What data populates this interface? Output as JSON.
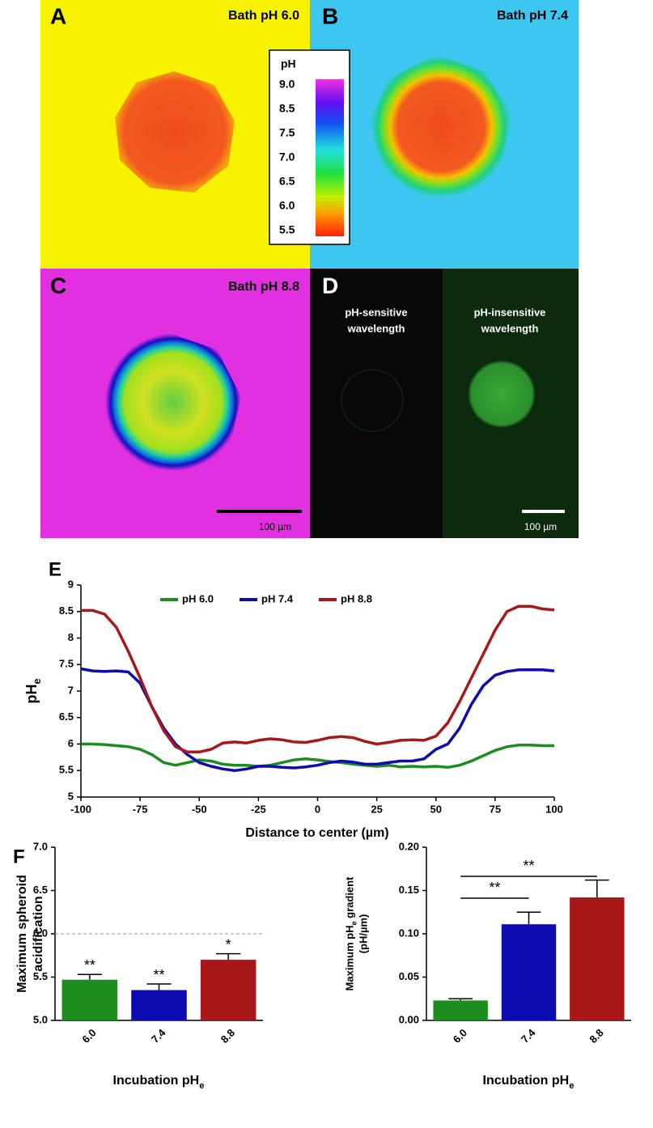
{
  "image_panels": [
    {
      "letter": "A",
      "title": "Bath pH 6.0"
    },
    {
      "letter": "B",
      "title": "Bath pH 7.4"
    },
    {
      "letter": "C",
      "title": "Bath pH 8.8",
      "scale_bar": "100 µm"
    },
    {
      "letter": "D",
      "left_caption": [
        "pH-sensitive",
        "wavelength"
      ],
      "right_caption": [
        "pH-insensitive",
        "wavelength"
      ],
      "scale_bar": "100 µm"
    }
  ],
  "colorbar": {
    "title": "pH",
    "labels": [
      "9.0",
      "8.5",
      "7.5",
      "7.0",
      "6.5",
      "6.0",
      "5.5"
    ]
  },
  "chart_data": [
    {
      "type": "line",
      "letter": "E",
      "x": [
        -100,
        -95,
        -90,
        -85,
        -80,
        -75,
        -70,
        -65,
        -60,
        -55,
        -50,
        -45,
        -40,
        -35,
        -30,
        -25,
        -20,
        -15,
        -10,
        -5,
        0,
        5,
        10,
        15,
        20,
        25,
        30,
        35,
        40,
        45,
        50,
        55,
        60,
        65,
        70,
        75,
        80,
        85,
        90,
        95,
        100
      ],
      "series": [
        {
          "name": "pH 6.0",
          "color": "#1e8c1e",
          "values": [
            6.0,
            6.0,
            5.99,
            5.97,
            5.95,
            5.9,
            5.8,
            5.65,
            5.6,
            5.65,
            5.7,
            5.68,
            5.62,
            5.6,
            5.6,
            5.58,
            5.6,
            5.65,
            5.7,
            5.72,
            5.7,
            5.67,
            5.65,
            5.62,
            5.6,
            5.58,
            5.6,
            5.57,
            5.58,
            5.57,
            5.58,
            5.56,
            5.6,
            5.68,
            5.78,
            5.88,
            5.95,
            5.98,
            5.98,
            5.97,
            5.97
          ]
        },
        {
          "name": "pH 7.4",
          "color": "#0c0cb0",
          "values": [
            7.42,
            7.38,
            7.37,
            7.38,
            7.36,
            7.15,
            6.7,
            6.3,
            6.0,
            5.8,
            5.65,
            5.58,
            5.53,
            5.5,
            5.53,
            5.58,
            5.58,
            5.56,
            5.55,
            5.57,
            5.6,
            5.65,
            5.68,
            5.66,
            5.62,
            5.62,
            5.65,
            5.68,
            5.68,
            5.72,
            5.9,
            6.0,
            6.3,
            6.75,
            7.1,
            7.3,
            7.37,
            7.4,
            7.4,
            7.4,
            7.38
          ]
        },
        {
          "name": "pH 8.8",
          "color": "#a81818",
          "values": [
            8.52,
            8.52,
            8.45,
            8.2,
            7.75,
            7.25,
            6.7,
            6.25,
            5.95,
            5.85,
            5.85,
            5.9,
            6.02,
            6.04,
            6.02,
            6.07,
            6.1,
            6.08,
            6.04,
            6.03,
            6.07,
            6.12,
            6.14,
            6.12,
            6.05,
            6.0,
            6.03,
            6.07,
            6.08,
            6.07,
            6.15,
            6.4,
            6.8,
            7.25,
            7.7,
            8.15,
            8.5,
            8.6,
            8.6,
            8.55,
            8.53
          ]
        }
      ],
      "xlim": [
        -100,
        100
      ],
      "xticks": [
        -100,
        -75,
        -50,
        -25,
        0,
        25,
        50,
        75,
        100
      ],
      "ylim": [
        5,
        9
      ],
      "yticks": [
        5,
        5.5,
        6,
        6.5,
        7,
        7.5,
        8,
        8.5,
        9
      ],
      "xlabel": [
        "Distance to center (µm)"
      ],
      "ylabel_lines": [
        [
          "pH",
          "e"
        ]
      ],
      "legend": "top",
      "grid": false
    },
    {
      "type": "bar",
      "letter": "F",
      "categories": [
        "6.0",
        "7.4",
        "8.8"
      ],
      "values": [
        5.47,
        5.35,
        5.7
      ],
      "errors": [
        0.06,
        0.07,
        0.07
      ],
      "colors": [
        "#1e8c1e",
        "#0c0cb0",
        "#a81818"
      ],
      "annotations": [
        "**",
        "**",
        "*"
      ],
      "reference_line": 6.0,
      "ylim": [
        5,
        7
      ],
      "yticks": [
        {
          "value": 5,
          "label": "5.0"
        },
        {
          "value": 5.5,
          "label": "5.5"
        },
        {
          "value": 6,
          "label": "6.0"
        },
        {
          "value": 6.5,
          "label": "6.5"
        },
        {
          "value": 7,
          "label": "7.0"
        }
      ],
      "xlabel": [
        "Incubation pH",
        "e"
      ],
      "ylabel_lines": [
        [
          "Maximum spheroid"
        ],
        [
          "acidification"
        ]
      ]
    },
    {
      "type": "bar",
      "categories": [
        "6.0",
        "7.4",
        "8.8"
      ],
      "values": [
        0.023,
        0.111,
        0.142
      ],
      "errors": [
        0.002,
        0.014,
        0.02
      ],
      "colors": [
        "#1e8c1e",
        "#0c0cb0",
        "#a81818"
      ],
      "comparisons": [
        {
          "from": 0,
          "to": 1,
          "label": "**"
        },
        {
          "from": 0,
          "to": 2,
          "label": "**"
        }
      ],
      "ylim": [
        0,
        0.2
      ],
      "yticks": [
        {
          "value": 0,
          "label": "0.00"
        },
        {
          "value": 0.05,
          "label": "0.05"
        },
        {
          "value": 0.1,
          "label": "0.10"
        },
        {
          "value": 0.15,
          "label": "0.15"
        },
        {
          "value": 0.2,
          "label": "0.20"
        }
      ],
      "xlabel": [
        "Incubation pH",
        "e"
      ],
      "ylabel_lines": [
        [
          "Maximum pH",
          "e",
          " gradient"
        ],
        [
          "(pH/µm)"
        ]
      ]
    }
  ]
}
